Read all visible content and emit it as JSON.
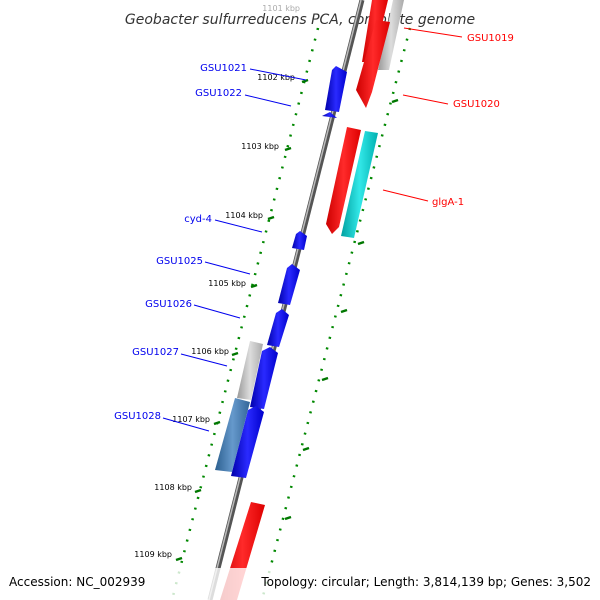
{
  "title": "Geobacter sulfurreducens PCA, complete genome",
  "footer": {
    "accession": "Accession: NC_002939",
    "topology": "Topology: circular; Length: 3,814,139 bp; Genes: 3,502"
  },
  "ruler": {
    "faint_label": "1101 kbp",
    "labels": [
      "1102 kbp",
      "1103 kbp",
      "1104 kbp",
      "1105 kbp",
      "1106 kbp",
      "1107 kbp",
      "1108 kbp",
      "1109 kbp"
    ]
  },
  "genes": [
    {
      "name": "GSU1019",
      "strand": "forward",
      "color": "#ff0000"
    },
    {
      "name": "GSU1020",
      "strand": "forward",
      "color": "#ff0000"
    },
    {
      "name": "glgA-1",
      "strand": "forward",
      "color": "#ff0000"
    },
    {
      "name": "GSU1021",
      "strand": "reverse",
      "color": "#0000ee"
    },
    {
      "name": "GSU1022",
      "strand": "reverse",
      "color": "#0000ee"
    },
    {
      "name": "cyd-4",
      "strand": "reverse",
      "color": "#0000ee"
    },
    {
      "name": "GSU1025",
      "strand": "reverse",
      "color": "#0000ee"
    },
    {
      "name": "GSU1026",
      "strand": "reverse",
      "color": "#0000ee"
    },
    {
      "name": "GSU1027",
      "strand": "reverse",
      "color": "#0000ee"
    },
    {
      "name": "GSU1028",
      "strand": "reverse",
      "color": "#0000ee"
    }
  ],
  "colors": {
    "forward_gene": "#ff0000",
    "reverse_gene": "#0000ee",
    "aux_gray": "#b0b0b0",
    "aux_cyan": "#00c8c8",
    "aux_steel": "#4477aa",
    "backbone": "#888888",
    "tick": "#007700"
  }
}
